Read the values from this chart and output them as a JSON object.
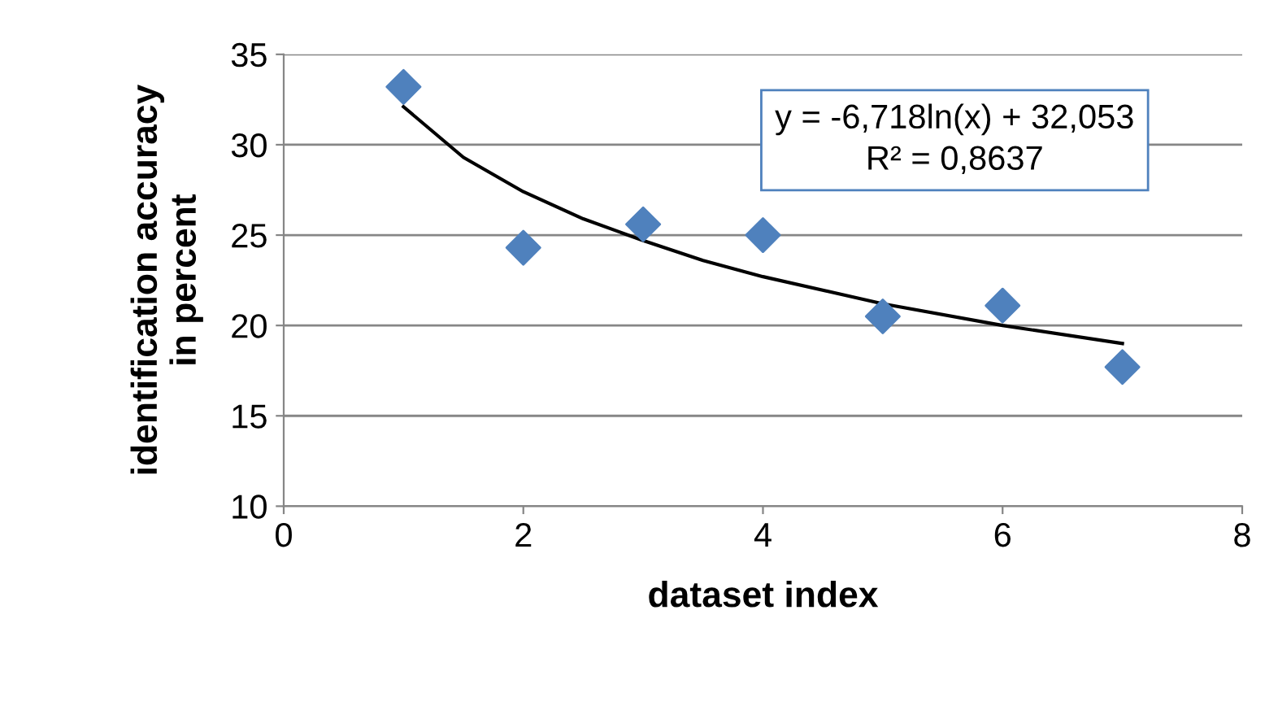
{
  "chart_data": {
    "type": "scatter",
    "xlabel": "dataset index",
    "ylabel": "identification accuracy\nin percent",
    "xlim": [
      0,
      8
    ],
    "xticks": [
      0,
      2,
      4,
      6,
      8
    ],
    "ylim": [
      10,
      35
    ],
    "yticks": [
      10,
      15,
      20,
      25,
      30,
      35
    ],
    "grid": "y",
    "series": [
      {
        "marker": "diamond",
        "color": "#4f81bd",
        "x": [
          1,
          2,
          3,
          4,
          5,
          6,
          7
        ],
        "values": [
          33.2,
          24.3,
          25.6,
          25.0,
          20.5,
          21.1,
          17.7
        ]
      },
      {
        "type": "line",
        "marker": "none",
        "color": "#000000",
        "x": [
          1,
          1.5,
          2,
          2.5,
          3,
          3.5,
          4,
          5,
          6,
          7
        ],
        "values": [
          32.1,
          29.3,
          27.4,
          25.9,
          24.7,
          23.6,
          22.7,
          21.2,
          20.0,
          19.0
        ]
      }
    ],
    "annotations": [
      "y = -6,718ln(x) + 32,053\nR² = 0,8637"
    ]
  }
}
